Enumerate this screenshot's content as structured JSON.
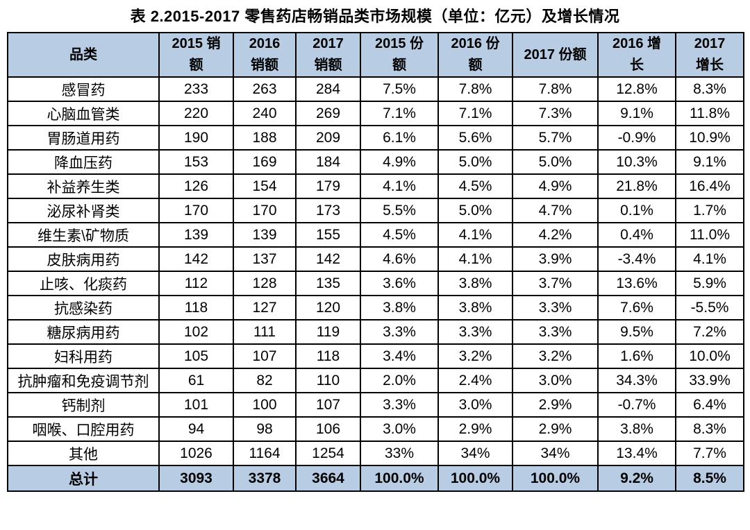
{
  "page": {
    "title": "表 2.2015-2017 零售药店畅销品类市场规模（单位：亿元）及增长情况"
  },
  "colors": {
    "header_background": "#B8CCE4",
    "total_row_background": "#B8CCE4",
    "border": "#000000",
    "text": "#000000",
    "page_background": "#FFFFFF"
  },
  "table_header_display": [
    "品类",
    "2015 销\n额",
    "2016\n销额",
    "2017\n销额",
    "2015 份\n额",
    "2016 份\n额",
    "2017 份额",
    "2016 增\n长",
    "2017\n增长"
  ],
  "chart_data": {
    "type": "table",
    "title": "表 2.2015-2017 零售药店畅销品类市场规模（单位：亿元）及增长情况",
    "columns": [
      "品类",
      "2015 销额",
      "2016 销额",
      "2017 销额",
      "2015 份额",
      "2016 份额",
      "2017 份额",
      "2016 增长",
      "2017 增长"
    ],
    "rows": [
      [
        "感冒药",
        "233",
        "263",
        "284",
        "7.5%",
        "7.8%",
        "7.8%",
        "12.8%",
        "8.3%"
      ],
      [
        "心脑血管类",
        "220",
        "240",
        "269",
        "7.1%",
        "7.1%",
        "7.3%",
        "9.1%",
        "11.8%"
      ],
      [
        "胃肠道用药",
        "190",
        "188",
        "209",
        "6.1%",
        "5.6%",
        "5.7%",
        "-0.9%",
        "10.9%"
      ],
      [
        "降血压药",
        "153",
        "169",
        "184",
        "4.9%",
        "5.0%",
        "5.0%",
        "10.3%",
        "9.1%"
      ],
      [
        "补益养生类",
        "126",
        "154",
        "179",
        "4.1%",
        "4.5%",
        "4.9%",
        "21.8%",
        "16.4%"
      ],
      [
        "泌尿补肾类",
        "170",
        "170",
        "173",
        "5.5%",
        "5.0%",
        "4.7%",
        "0.1%",
        "1.7%"
      ],
      [
        "维生素\\矿物质",
        "139",
        "139",
        "155",
        "4.5%",
        "4.1%",
        "4.2%",
        "0.4%",
        "11.0%"
      ],
      [
        "皮肤病用药",
        "142",
        "137",
        "142",
        "4.6%",
        "4.1%",
        "3.9%",
        "-3.4%",
        "4.1%"
      ],
      [
        "止咳、化痰药",
        "112",
        "128",
        "135",
        "3.6%",
        "3.8%",
        "3.7%",
        "13.6%",
        "5.9%"
      ],
      [
        "抗感染药",
        "118",
        "127",
        "120",
        "3.8%",
        "3.8%",
        "3.3%",
        "7.6%",
        "-5.5%"
      ],
      [
        "糖尿病用药",
        "102",
        "111",
        "119",
        "3.3%",
        "3.3%",
        "3.3%",
        "9.5%",
        "7.2%"
      ],
      [
        "妇科用药",
        "105",
        "107",
        "118",
        "3.4%",
        "3.2%",
        "3.2%",
        "1.6%",
        "10.0%"
      ],
      [
        "抗肿瘤和免疫调节剂",
        "61",
        "82",
        "110",
        "2.0%",
        "2.4%",
        "3.0%",
        "34.3%",
        "33.9%"
      ],
      [
        "钙制剂",
        "101",
        "100",
        "107",
        "3.3%",
        "3.0%",
        "2.9%",
        "-0.7%",
        "6.4%"
      ],
      [
        "咽喉、口腔用药",
        "94",
        "98",
        "106",
        "3.0%",
        "2.9%",
        "2.9%",
        "3.8%",
        "8.3%"
      ],
      [
        "其他",
        "1026",
        "1164",
        "1254",
        "33%",
        "34%",
        "34%",
        "13.4%",
        "7.7%"
      ]
    ],
    "total_row": [
      "总计",
      "3093",
      "3378",
      "3664",
      "100.0%",
      "100.0%",
      "100.0%",
      "9.2%",
      "8.5%"
    ]
  }
}
